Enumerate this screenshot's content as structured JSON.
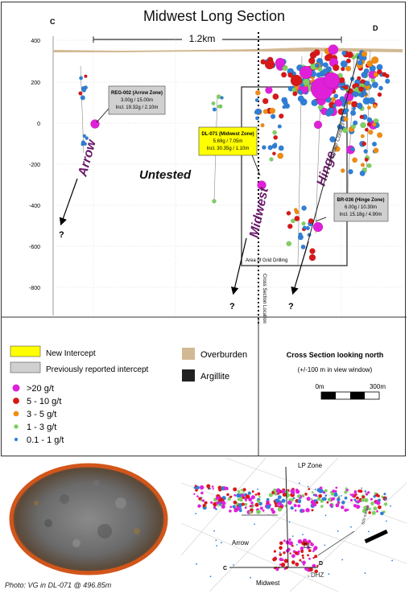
{
  "title": "Midwest Long Section",
  "corner_left": "C",
  "corner_right": "D",
  "scale_label": "1.2km",
  "y_ticks": [
    "400",
    "200",
    "0",
    "-200",
    "-400",
    "-600",
    "-800"
  ],
  "zones": {
    "arrow": "Arrow",
    "untested": "Untested",
    "midwest": "Midwest",
    "hinge": "Hinge",
    "argillite_contact": "Argillite Contact",
    "grid_area": "Area of Grid Drilling",
    "cross_section": "Cross Section Location",
    "question": "?"
  },
  "callouts": {
    "reg002": {
      "title": "REG-002 (Arrow Zone)",
      "line1": "3.00g / 15.00m",
      "line2": "Incl. 19.32g / 2.10m",
      "type": "previous"
    },
    "dl071": {
      "title": "DL-071 (Midwest Zone)",
      "line1": "5.69g / 7.05m",
      "line2": "Incl. 30.35g / 1.10m",
      "type": "new"
    },
    "br036": {
      "title": "BR-036 (Hinge Zone)",
      "line1": "6.00g / 10.30m",
      "line2": "Incl. 15.18g / 4.90m",
      "type": "previous"
    }
  },
  "legend": {
    "new_intercept": "New Intercept",
    "previous_intercept": "Previously reported  intercept",
    "overburden": "Overburden",
    "argillite": "Argillite",
    "grades": [
      {
        "label": ">20 g/t",
        "color": "#e020d8"
      },
      {
        "label": "5 - 10 g/t",
        "color": "#d81818"
      },
      {
        "label": "3 - 5 g/t",
        "color": "#f08c10"
      },
      {
        "label": "1 - 3 g/t",
        "color": "#7ed060"
      },
      {
        "label": "0.1 - 1 g/t",
        "color": "#2f7fd8"
      }
    ]
  },
  "cross_section_box": {
    "title": "Cross Section looking north",
    "subtitle": "(+/-100 m in view window)",
    "scale_start": "0m",
    "scale_end": "300m"
  },
  "inset": {
    "lp_zone": "LP Zone",
    "arrow": "Arrow",
    "dl": "DL",
    "midwest": "Midwest",
    "dhz": "DHZ",
    "c": "C",
    "d": "D",
    "scale": "500 metres"
  },
  "photo_caption": "Photo: VG in DL-071 @ 496.85m",
  "colors": {
    "overburden": "#d2b994",
    "argillite": "#222222",
    "new_intercept": "#ffff00",
    "previous_intercept": "#d0d0d0"
  }
}
